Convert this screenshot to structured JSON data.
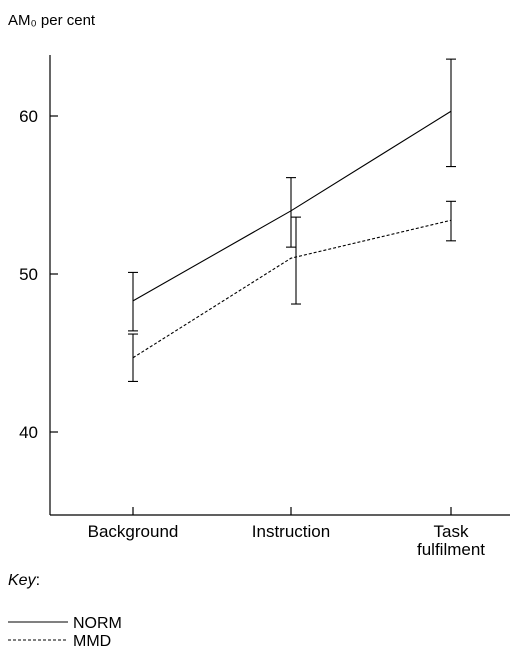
{
  "chart_data": {
    "type": "line",
    "ylabel": "AM₀ per cent",
    "xlabel": "",
    "title": "",
    "categories": [
      "Background",
      "Instruction",
      "Task|fulfilment"
    ],
    "ylim": [
      35,
      64
    ],
    "yticks": [
      40,
      50,
      60
    ],
    "series": [
      {
        "name": "NORM",
        "style": "solid",
        "values": [
          48.3,
          54.0,
          60.3
        ],
        "err_low": [
          46.4,
          51.7,
          56.8
        ],
        "err_high": [
          50.1,
          56.1,
          63.6
        ]
      },
      {
        "name": "MMD",
        "style": "dashed",
        "values": [
          44.7,
          51.0,
          53.4
        ],
        "err_low": [
          43.2,
          48.1,
          52.1
        ],
        "err_high": [
          46.2,
          53.6,
          54.6
        ]
      }
    ],
    "key_title": "Key",
    "key_suffix": ":",
    "grid": false
  }
}
